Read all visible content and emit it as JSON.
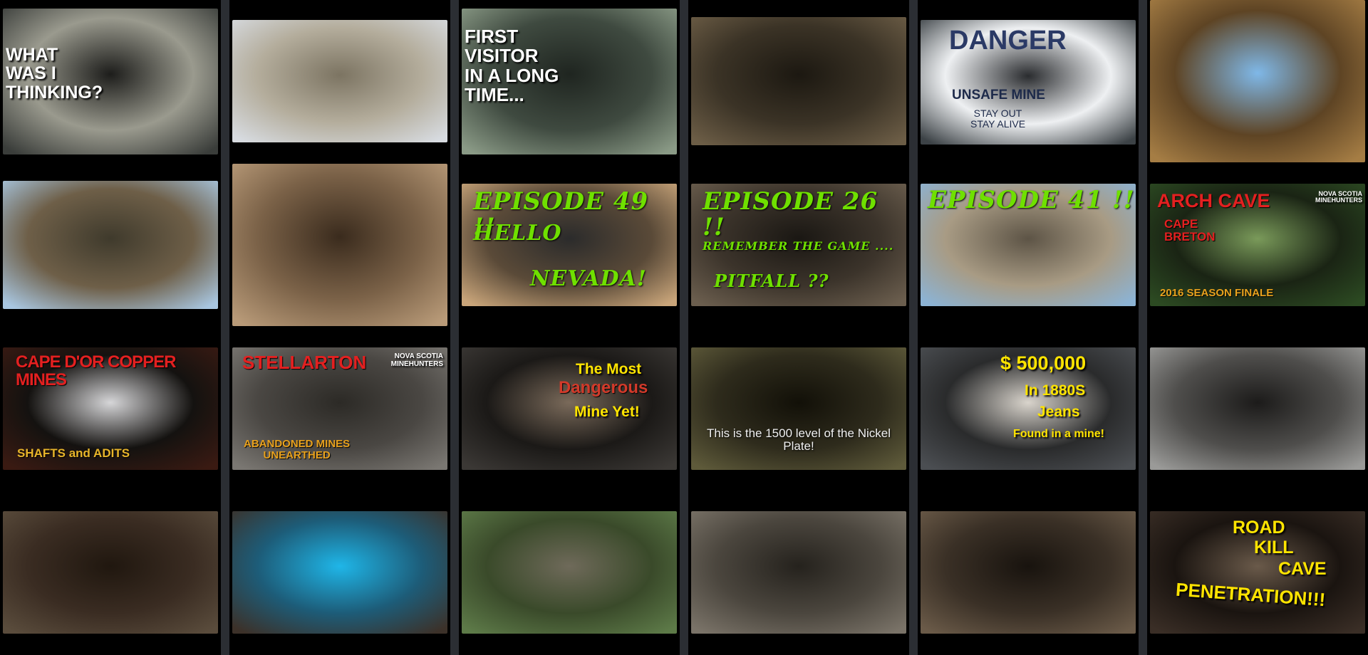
{
  "gallery": {
    "columns": [
      [
        {
          "id": "t1",
          "bg": [
            "#3a3d3a",
            "#9a9a8e",
            "#1d1d1b"
          ],
          "lines": [
            "WHAT",
            "WAS I",
            "THINKING?"
          ]
        },
        {
          "id": "t2",
          "bg": [
            "#a8c6e0",
            "#6e5f48",
            "#3f3a2c"
          ],
          "lines": []
        },
        {
          "id": "t3",
          "bg": [
            "#3a1a12",
            "#141210",
            "#d6d6d8"
          ],
          "lines": [
            "CAPE D'OR COPPER MINES",
            "SHAFTS and ADITS"
          ]
        },
        {
          "id": "t4",
          "bg": [
            "#5a4c3c",
            "#3a2c22",
            "#20170f"
          ],
          "lines": []
        }
      ],
      [
        {
          "id": "t5",
          "bg": [
            "#d7dbe0",
            "#b4ad9c",
            "#7c7462"
          ],
          "lines": []
        },
        {
          "id": "t6",
          "bg": [
            "#b89a78",
            "#7b6248",
            "#3a2b1d"
          ],
          "lines": []
        },
        {
          "id": "t7",
          "bg": [
            "#7a7772",
            "#4a4743",
            "#2c2a26"
          ],
          "lines": [
            "STELLARTON",
            "NOVA SCOTIA",
            "MINEHUNTERS",
            "ABANDONED MINES",
            "UNEARTHED"
          ]
        },
        {
          "id": "t8",
          "bg": [
            "#3c3129",
            "#1d5c78",
            "#1fb6e8"
          ],
          "lines": []
        }
      ],
      [
        {
          "id": "t9",
          "bg": [
            "#8a9a86",
            "#3f4a40",
            "#1f2520"
          ],
          "lines": [
            "FIRST",
            "VISITOR",
            "IN A LONG",
            "TIME..."
          ]
        },
        {
          "id": "t10",
          "bg": [
            "#c9a57a",
            "#5a4a38",
            "#2b2b2b"
          ],
          "lines": [
            "EPISODE 49 !!",
            "HELLO",
            "NEVADA!"
          ]
        },
        {
          "id": "t11",
          "bg": [
            "#3b3835",
            "#1b1917",
            "#7a6a5a"
          ],
          "lines": [
            "The Most",
            "Dangerous",
            "Mine Yet!"
          ]
        },
        {
          "id": "t12",
          "bg": [
            "#5d7a48",
            "#3a4a2a",
            "#6f6a5a"
          ],
          "lines": []
        }
      ],
      [
        {
          "id": "t13",
          "bg": [
            "#6c5d46",
            "#3b3326",
            "#1c1811"
          ],
          "lines": []
        },
        {
          "id": "t14",
          "bg": [
            "#6b5e4e",
            "#3c342b",
            "#1a1713"
          ],
          "lines": [
            "EPISODE 26 !!",
            "REMEMBER THE GAME ....",
            "PITFALL ??"
          ]
        },
        {
          "id": "t15",
          "bg": [
            "#5e5a3a",
            "#2e2b1c",
            "#121008"
          ],
          "lines": [
            "This is the 1500 level of the Nickel",
            "Plate!"
          ]
        },
        {
          "id": "t16",
          "bg": [
            "#7a7368",
            "#4b463e",
            "#25221d"
          ],
          "lines": []
        }
      ],
      [
        {
          "id": "t17",
          "bg": [
            "#3c4246",
            "#eef0f2",
            "#2a2c2f"
          ],
          "lines": [
            "DANGER",
            "UNSAFE MINE",
            "STAY OUT",
            "STAY ALIVE"
          ]
        },
        {
          "id": "t18",
          "bg": [
            "#8cb3d4",
            "#a89b84",
            "#5d5446"
          ],
          "lines": [
            "EPISODE 41 !!"
          ]
        },
        {
          "id": "t19",
          "bg": [
            "#4b4e52",
            "#2a2b2c",
            "#d9d4cc"
          ],
          "lines": [
            "$ 500,000",
            "In 1880S",
            "Jeans",
            "Found in a mine!"
          ]
        },
        {
          "id": "t20",
          "bg": [
            "#6a5a48",
            "#3a3026",
            "#18130e"
          ],
          "lines": []
        }
      ],
      [
        {
          "id": "t21",
          "bg": [
            "#a57d44",
            "#5e4424",
            "#7fb8e8"
          ],
          "lines": []
        },
        {
          "id": "t22",
          "bg": [
            "#2c4a22",
            "#1a2414",
            "#7a9a5a"
          ],
          "lines": [
            "ARCH CAVE",
            "NOVA SCOTIA",
            "MINEHUNTERS",
            "CAPE",
            "BRETON",
            "2016 SEASON FINALE"
          ]
        },
        {
          "id": "t23",
          "bg": [
            "#9a9a98",
            "#4f4e4c",
            "#1c1b1a"
          ],
          "lines": []
        },
        {
          "id": "t24",
          "bg": [
            "#3a2e26",
            "#1a1410",
            "#6a5a4a"
          ],
          "lines": [
            "ROAD",
            "KILL",
            "CAVE",
            "PENETRATION!!!"
          ]
        }
      ]
    ]
  }
}
